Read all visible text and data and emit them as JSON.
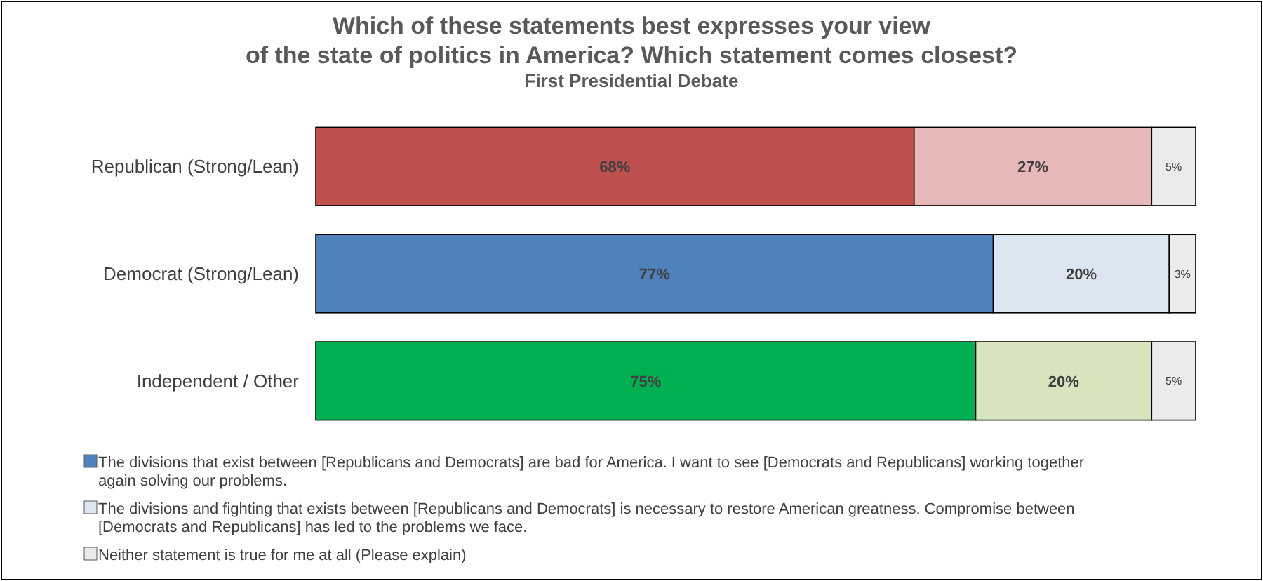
{
  "chart_data": {
    "type": "bar",
    "orientation": "horizontal",
    "stacked": true,
    "title": "Which of these statements best expresses your view\nof the state of politics in America? Which statement comes closest?",
    "subtitle": "First Presidential Debate",
    "categories": [
      "Republican (Strong/Lean)",
      "Democrat (Strong/Lean)",
      "Independent / Other"
    ],
    "series": [
      {
        "name": "The divisions that exist between [Republicans and Democrats] are bad for America. I want to see [Democrats and Republicans] working together again solving our problems.",
        "color": "#4f81bd",
        "colors": [
          "#c0504d",
          "#4f81bd",
          "#00b050"
        ],
        "values": [
          68,
          77,
          75
        ],
        "value_labels": [
          "68%",
          "77%",
          "75%"
        ]
      },
      {
        "name": "The divisions and fighting that exists between [Republicans and Democrats] is necessary to restore American greatness. Compromise between [Democrats and Republicans] has led to the problems we face.",
        "color": "#dce6f1",
        "colors": [
          "#e6b8b7",
          "#dce6f1",
          "#d8e4bc"
        ],
        "values": [
          27,
          20,
          20
        ],
        "value_labels": [
          "27%",
          "20%",
          "20%"
        ]
      },
      {
        "name": "Neither statement is true for me at all (Please explain)",
        "color": "#ebebeb",
        "colors": [
          "#ebebeb",
          "#ebebeb",
          "#ebebeb"
        ],
        "values": [
          5,
          3,
          5
        ],
        "value_labels": [
          "5%",
          "3%",
          "5%"
        ]
      }
    ],
    "legend": "bottom"
  }
}
